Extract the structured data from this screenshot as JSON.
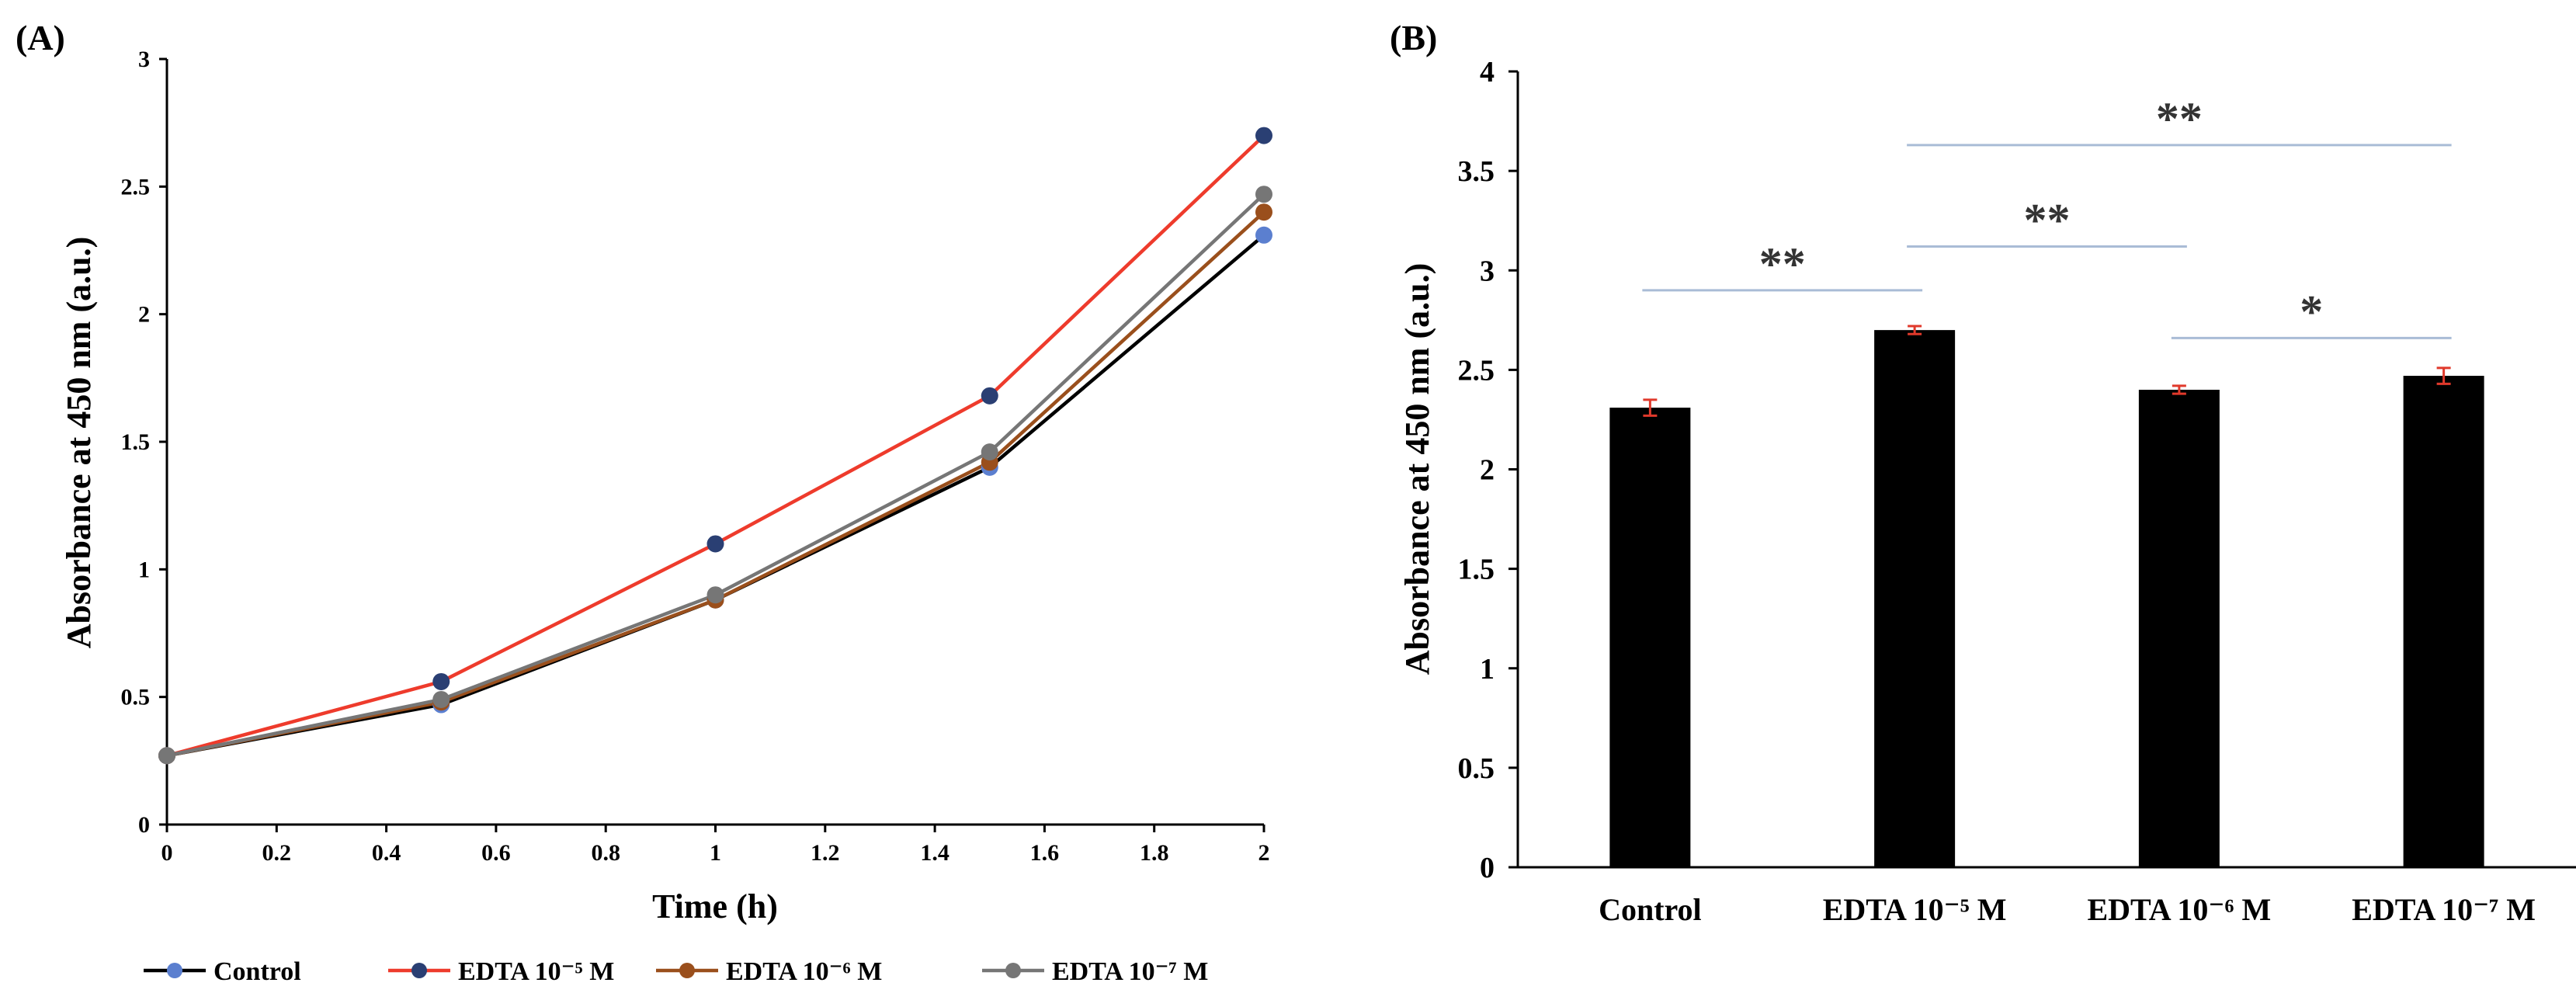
{
  "chart_data": [
    {
      "panel_label": "(A)",
      "type": "line",
      "xlabel": "Time (h)",
      "ylabel": "Absorbance at 450 nm (a.u.)",
      "xlim": [
        0,
        2
      ],
      "ylim": [
        0,
        3
      ],
      "x_ticks": [
        "0",
        "0.2",
        "0.4",
        "0.6",
        "0.8",
        "1",
        "1.2",
        "1.4",
        "1.6",
        "1.8",
        "2"
      ],
      "y_ticks": [
        "0",
        "0.5",
        "1",
        "1.5",
        "2",
        "2.5",
        "3"
      ],
      "legend_position": "bottom",
      "x": [
        0,
        0.5,
        1,
        1.5,
        2
      ],
      "series": [
        {
          "name": "Control",
          "line_color": "#000000",
          "marker_color": "#5b7fcf",
          "values": [
            0.27,
            0.47,
            0.88,
            1.4,
            2.31
          ]
        },
        {
          "name": "EDTA 10⁻⁵ M",
          "line_color": "#ee3b2c",
          "marker_color": "#2a3f73",
          "values": [
            0.27,
            0.56,
            1.1,
            1.68,
            2.7
          ]
        },
        {
          "name": "EDTA 10⁻⁶ M",
          "line_color": "#9a4f1c",
          "marker_color": "#9a4f1c",
          "values": [
            0.27,
            0.48,
            0.88,
            1.42,
            2.4
          ]
        },
        {
          "name": "EDTA 10⁻⁷ M",
          "line_color": "#767676",
          "marker_color": "#767676",
          "values": [
            0.27,
            0.49,
            0.9,
            1.46,
            2.47
          ]
        }
      ]
    },
    {
      "panel_label": "(B)",
      "type": "bar",
      "ylabel": "Absorbance at 450 nm (a.u.)",
      "ylim": [
        0,
        4
      ],
      "y_ticks": [
        "0",
        "0.5",
        "1",
        "1.5",
        "2",
        "2.5",
        "3",
        "3.5",
        "4"
      ],
      "categories": [
        "Control",
        "EDTA 10⁻⁵ M",
        "EDTA 10⁻⁶ M",
        "EDTA 10⁻⁷ M"
      ],
      "values": [
        2.31,
        2.7,
        2.4,
        2.47
      ],
      "errors": [
        0.04,
        0.02,
        0.02,
        0.04
      ],
      "bar_color": "#000000",
      "error_color": "#e0392b",
      "significance": [
        {
          "from": 0,
          "to": 1,
          "label": "**",
          "level": 2.9
        },
        {
          "from": 1,
          "to": 2,
          "label": "**",
          "level": 3.12
        },
        {
          "from": 1,
          "to": 3,
          "label": "**",
          "level": 3.63
        },
        {
          "from": 2,
          "to": 3,
          "label": "*",
          "level": 2.66
        }
      ]
    }
  ]
}
